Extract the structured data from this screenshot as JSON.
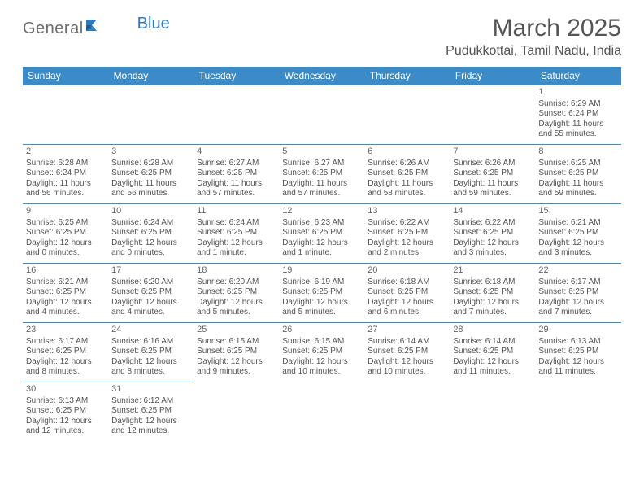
{
  "logo": {
    "text1": "General",
    "text2": "Blue",
    "text_color": "#6d6d6d",
    "accent_color": "#2f7bbf"
  },
  "title": "March 2025",
  "subtitle": "Pudukkottai, Tamil Nadu, India",
  "header_bg": "#3b8bc8",
  "header_fg": "#ffffff",
  "border_color": "#3b8bc8",
  "daynames": [
    "Sunday",
    "Monday",
    "Tuesday",
    "Wednesday",
    "Thursday",
    "Friday",
    "Saturday"
  ],
  "weeks": [
    [
      null,
      null,
      null,
      null,
      null,
      null,
      {
        "d": "1",
        "sr": "Sunrise: 6:29 AM",
        "ss": "Sunset: 6:24 PM",
        "dl": "Daylight: 11 hours and 55 minutes."
      }
    ],
    [
      {
        "d": "2",
        "sr": "Sunrise: 6:28 AM",
        "ss": "Sunset: 6:24 PM",
        "dl": "Daylight: 11 hours and 56 minutes."
      },
      {
        "d": "3",
        "sr": "Sunrise: 6:28 AM",
        "ss": "Sunset: 6:25 PM",
        "dl": "Daylight: 11 hours and 56 minutes."
      },
      {
        "d": "4",
        "sr": "Sunrise: 6:27 AM",
        "ss": "Sunset: 6:25 PM",
        "dl": "Daylight: 11 hours and 57 minutes."
      },
      {
        "d": "5",
        "sr": "Sunrise: 6:27 AM",
        "ss": "Sunset: 6:25 PM",
        "dl": "Daylight: 11 hours and 57 minutes."
      },
      {
        "d": "6",
        "sr": "Sunrise: 6:26 AM",
        "ss": "Sunset: 6:25 PM",
        "dl": "Daylight: 11 hours and 58 minutes."
      },
      {
        "d": "7",
        "sr": "Sunrise: 6:26 AM",
        "ss": "Sunset: 6:25 PM",
        "dl": "Daylight: 11 hours and 59 minutes."
      },
      {
        "d": "8",
        "sr": "Sunrise: 6:25 AM",
        "ss": "Sunset: 6:25 PM",
        "dl": "Daylight: 11 hours and 59 minutes."
      }
    ],
    [
      {
        "d": "9",
        "sr": "Sunrise: 6:25 AM",
        "ss": "Sunset: 6:25 PM",
        "dl": "Daylight: 12 hours and 0 minutes."
      },
      {
        "d": "10",
        "sr": "Sunrise: 6:24 AM",
        "ss": "Sunset: 6:25 PM",
        "dl": "Daylight: 12 hours and 0 minutes."
      },
      {
        "d": "11",
        "sr": "Sunrise: 6:24 AM",
        "ss": "Sunset: 6:25 PM",
        "dl": "Daylight: 12 hours and 1 minute."
      },
      {
        "d": "12",
        "sr": "Sunrise: 6:23 AM",
        "ss": "Sunset: 6:25 PM",
        "dl": "Daylight: 12 hours and 1 minute."
      },
      {
        "d": "13",
        "sr": "Sunrise: 6:22 AM",
        "ss": "Sunset: 6:25 PM",
        "dl": "Daylight: 12 hours and 2 minutes."
      },
      {
        "d": "14",
        "sr": "Sunrise: 6:22 AM",
        "ss": "Sunset: 6:25 PM",
        "dl": "Daylight: 12 hours and 3 minutes."
      },
      {
        "d": "15",
        "sr": "Sunrise: 6:21 AM",
        "ss": "Sunset: 6:25 PM",
        "dl": "Daylight: 12 hours and 3 minutes."
      }
    ],
    [
      {
        "d": "16",
        "sr": "Sunrise: 6:21 AM",
        "ss": "Sunset: 6:25 PM",
        "dl": "Daylight: 12 hours and 4 minutes."
      },
      {
        "d": "17",
        "sr": "Sunrise: 6:20 AM",
        "ss": "Sunset: 6:25 PM",
        "dl": "Daylight: 12 hours and 4 minutes."
      },
      {
        "d": "18",
        "sr": "Sunrise: 6:20 AM",
        "ss": "Sunset: 6:25 PM",
        "dl": "Daylight: 12 hours and 5 minutes."
      },
      {
        "d": "19",
        "sr": "Sunrise: 6:19 AM",
        "ss": "Sunset: 6:25 PM",
        "dl": "Daylight: 12 hours and 5 minutes."
      },
      {
        "d": "20",
        "sr": "Sunrise: 6:18 AM",
        "ss": "Sunset: 6:25 PM",
        "dl": "Daylight: 12 hours and 6 minutes."
      },
      {
        "d": "21",
        "sr": "Sunrise: 6:18 AM",
        "ss": "Sunset: 6:25 PM",
        "dl": "Daylight: 12 hours and 7 minutes."
      },
      {
        "d": "22",
        "sr": "Sunrise: 6:17 AM",
        "ss": "Sunset: 6:25 PM",
        "dl": "Daylight: 12 hours and 7 minutes."
      }
    ],
    [
      {
        "d": "23",
        "sr": "Sunrise: 6:17 AM",
        "ss": "Sunset: 6:25 PM",
        "dl": "Daylight: 12 hours and 8 minutes."
      },
      {
        "d": "24",
        "sr": "Sunrise: 6:16 AM",
        "ss": "Sunset: 6:25 PM",
        "dl": "Daylight: 12 hours and 8 minutes."
      },
      {
        "d": "25",
        "sr": "Sunrise: 6:15 AM",
        "ss": "Sunset: 6:25 PM",
        "dl": "Daylight: 12 hours and 9 minutes."
      },
      {
        "d": "26",
        "sr": "Sunrise: 6:15 AM",
        "ss": "Sunset: 6:25 PM",
        "dl": "Daylight: 12 hours and 10 minutes."
      },
      {
        "d": "27",
        "sr": "Sunrise: 6:14 AM",
        "ss": "Sunset: 6:25 PM",
        "dl": "Daylight: 12 hours and 10 minutes."
      },
      {
        "d": "28",
        "sr": "Sunrise: 6:14 AM",
        "ss": "Sunset: 6:25 PM",
        "dl": "Daylight: 12 hours and 11 minutes."
      },
      {
        "d": "29",
        "sr": "Sunrise: 6:13 AM",
        "ss": "Sunset: 6:25 PM",
        "dl": "Daylight: 12 hours and 11 minutes."
      }
    ],
    [
      {
        "d": "30",
        "sr": "Sunrise: 6:13 AM",
        "ss": "Sunset: 6:25 PM",
        "dl": "Daylight: 12 hours and 12 minutes."
      },
      {
        "d": "31",
        "sr": "Sunrise: 6:12 AM",
        "ss": "Sunset: 6:25 PM",
        "dl": "Daylight: 12 hours and 12 minutes."
      },
      null,
      null,
      null,
      null,
      null
    ]
  ]
}
